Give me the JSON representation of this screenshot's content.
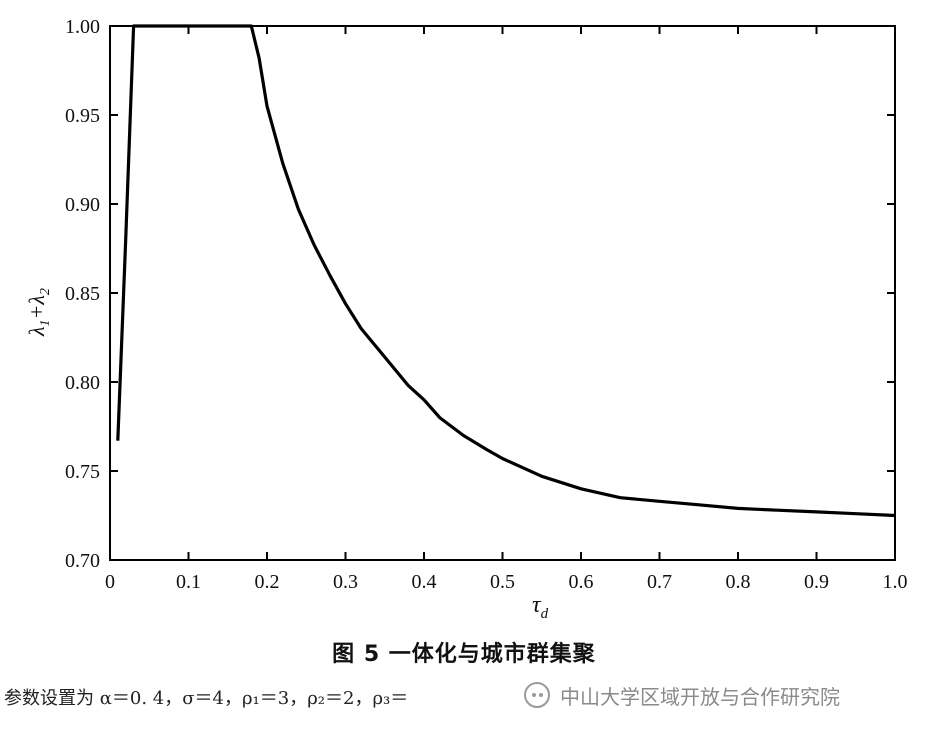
{
  "chart_data": {
    "type": "line",
    "title": "",
    "xlabel": "τ",
    "xlabel_sub": "d",
    "ylabel": "λ",
    "ylabel_sub1": "1",
    "ylabel_plus": "+λ",
    "ylabel_sub2": "2",
    "xlim": [
      0,
      1
    ],
    "ylim": [
      0.7,
      1.0
    ],
    "x_ticks": [
      "0",
      "0.1",
      "0.2",
      "0.3",
      "0.4",
      "0.5",
      "0.6",
      "0.7",
      "0.8",
      "0.9",
      "1.0"
    ],
    "y_ticks": [
      "0.70",
      "0.75",
      "0.80",
      "0.85",
      "0.90",
      "0.95",
      "1.00"
    ],
    "x_tick_values": [
      0,
      0.1,
      0.2,
      0.3,
      0.4,
      0.5,
      0.6,
      0.7,
      0.8,
      0.9,
      1.0
    ],
    "y_tick_values": [
      0.7,
      0.75,
      0.8,
      0.85,
      0.9,
      0.95,
      1.0
    ],
    "grid": false,
    "series": [
      {
        "x": [
          0.01,
          0.02,
          0.03,
          0.05,
          0.1,
          0.15,
          0.18,
          0.19,
          0.2,
          0.22,
          0.24,
          0.26,
          0.28,
          0.3,
          0.32,
          0.35,
          0.38,
          0.4,
          0.42,
          0.45,
          0.48,
          0.5,
          0.55,
          0.6,
          0.65,
          0.7,
          0.75,
          0.8,
          0.85,
          0.9,
          0.95,
          1.0
        ],
        "values": [
          0.767,
          0.88,
          1.0,
          1.0,
          1.0,
          1.0,
          1.0,
          0.982,
          0.955,
          0.923,
          0.897,
          0.877,
          0.86,
          0.844,
          0.83,
          0.814,
          0.798,
          0.79,
          0.78,
          0.77,
          0.762,
          0.757,
          0.747,
          0.74,
          0.735,
          0.733,
          0.731,
          0.729,
          0.728,
          0.727,
          0.726,
          0.725
        ]
      }
    ],
    "color": "#000000"
  },
  "caption": "图 5 一体化与城市群集聚",
  "param_note": "参数设置为 α＝0. 4，σ＝4，ρ₁＝3，ρ₂＝2，ρ₃＝",
  "watermark_text": "中山大学区域开放与合作研究院"
}
